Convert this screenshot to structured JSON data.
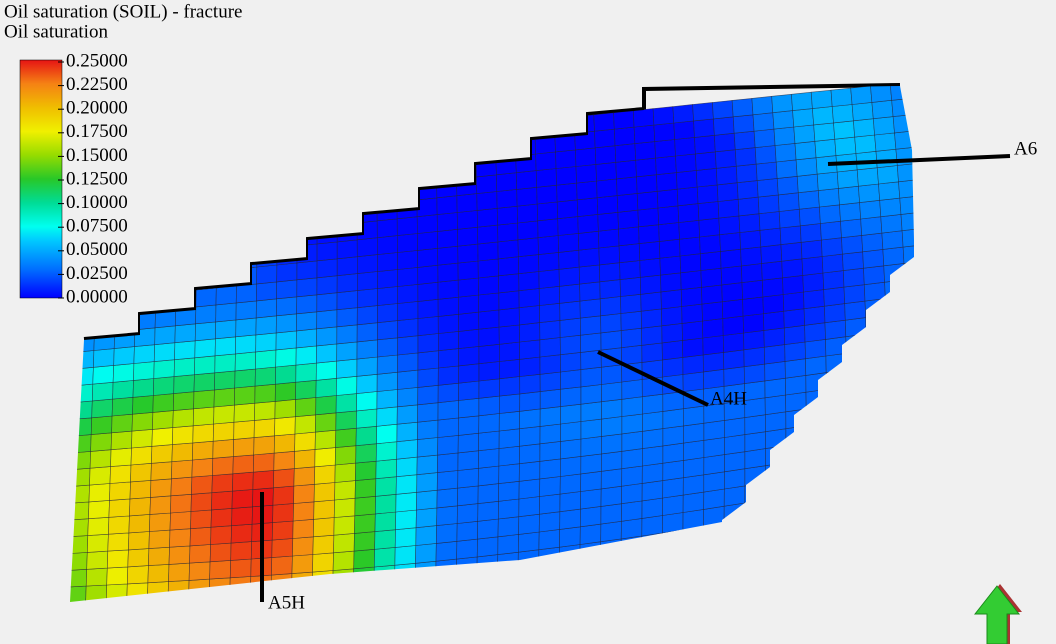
{
  "title": "Oil saturation (SOIL) - fracture",
  "legend": {
    "title": "Oil saturation",
    "labels": [
      "0.25000",
      "0.22500",
      "0.20000",
      "0.17500",
      "0.15000",
      "0.12500",
      "0.10000",
      "0.07500",
      "0.05000",
      "0.02500",
      "0.00000"
    ]
  },
  "wells": [
    "A6",
    "A4H",
    "A5H"
  ]
}
